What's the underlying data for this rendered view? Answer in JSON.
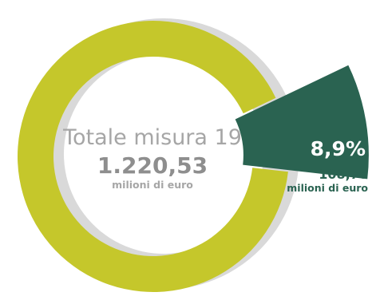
{
  "chart_data": {
    "type": "pie",
    "style": "donut-with-exploded-slice",
    "total": {
      "title": "Totale misura 19",
      "value": 1220.53,
      "value_label": "1.220,53",
      "unit": "milioni di euro"
    },
    "slices": [
      {
        "name": "",
        "value": 108.78,
        "value_label": "108,78",
        "unit": "milioni di euro",
        "percent": 8.9,
        "percent_label": "8,9%",
        "color": "#2a6351",
        "exploded": true
      },
      {
        "name": "",
        "value": 1111.75,
        "percent": 91.1,
        "color": "#c5c72b",
        "exploded": false
      }
    ],
    "colors": {
      "ring": "#c5c72b",
      "highlight": "#2a6351",
      "shadow": "#d9d9d9",
      "center_text": "#a6a6a6"
    }
  }
}
